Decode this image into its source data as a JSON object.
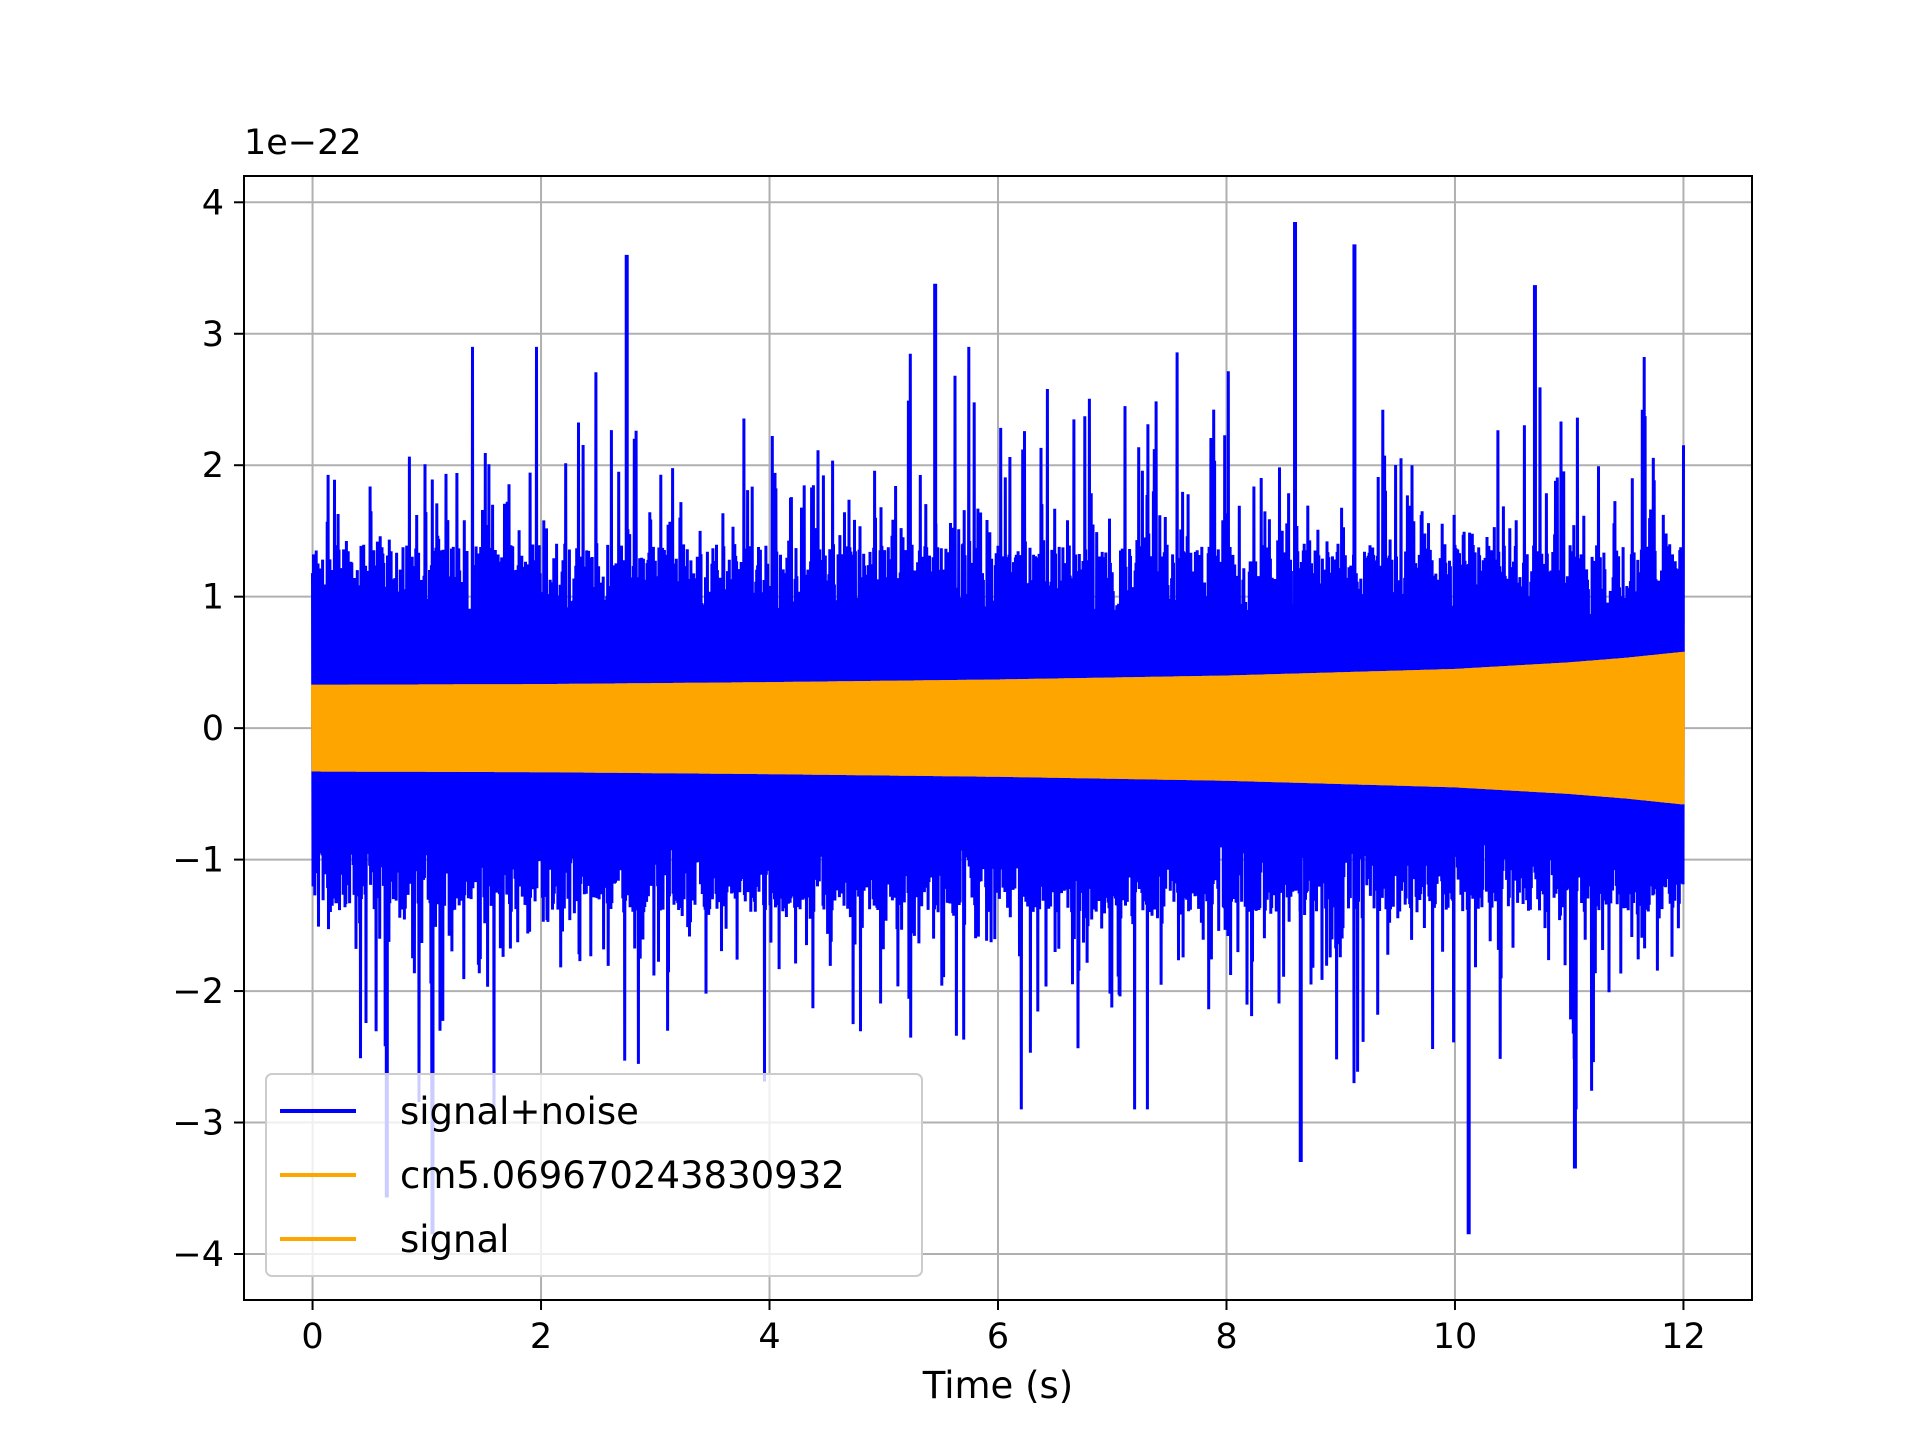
{
  "chart_data": {
    "type": "line",
    "title": "",
    "xlabel": "Time (s)",
    "ylabel": "",
    "y_offset_label": "1e−22",
    "y_scale_exponent": -22,
    "xlim": [
      -0.6,
      12.6
    ],
    "ylim": [
      -4.35,
      4.2
    ],
    "xticks": [
      0,
      2,
      4,
      6,
      8,
      10,
      12
    ],
    "xtick_labels": [
      "0",
      "2",
      "4",
      "6",
      "8",
      "10",
      "12"
    ],
    "yticks": [
      -4,
      -3,
      -2,
      -1,
      0,
      1,
      2,
      3,
      4
    ],
    "ytick_labels": [
      "−4",
      "−3",
      "−2",
      "−1",
      "0",
      "1",
      "2",
      "3",
      "4"
    ],
    "grid": true,
    "legend_position": "lower-left",
    "series": [
      {
        "name": "signal+noise",
        "color": "#0000ff",
        "x_range": [
          0,
          12
        ],
        "sampling": "dense oscillation (noise-dominated)",
        "typical_amplitude": 2.0,
        "peak_max": 3.85,
        "peak_min": -3.85,
        "notable_peaks": [
          {
            "x": 2.75,
            "y": 3.6
          },
          {
            "x": 5.45,
            "y": 3.38
          },
          {
            "x": 8.6,
            "y": 3.85
          },
          {
            "x": 9.12,
            "y": 3.68
          },
          {
            "x": 10.7,
            "y": 3.37
          },
          {
            "x": 10.12,
            "y": -3.85
          },
          {
            "x": 1.05,
            "y": -3.85
          },
          {
            "x": 0.65,
            "y": -3.57
          },
          {
            "x": 11.05,
            "y": -3.35
          },
          {
            "x": 8.65,
            "y": -3.3
          }
        ]
      },
      {
        "name": "cm5.069670243830932",
        "color": "#ffa500",
        "x_range": [
          0,
          12
        ],
        "sampling": "dense oscillation (chirp)",
        "envelope": {
          "x": [
            0,
            2,
            4,
            6,
            8,
            10,
            11,
            11.5,
            12
          ],
          "amplitude": [
            0.33,
            0.335,
            0.35,
            0.37,
            0.4,
            0.45,
            0.5,
            0.535,
            0.58
          ]
        }
      },
      {
        "name": "signal",
        "color": "#ffa500",
        "x_range": [
          0,
          12
        ],
        "sampling": "dense oscillation (chirp)",
        "envelope": {
          "x": [
            0,
            2,
            4,
            6,
            8,
            10,
            11,
            11.5,
            12
          ],
          "amplitude": [
            0.33,
            0.335,
            0.35,
            0.37,
            0.4,
            0.45,
            0.5,
            0.535,
            0.58
          ]
        }
      }
    ]
  }
}
